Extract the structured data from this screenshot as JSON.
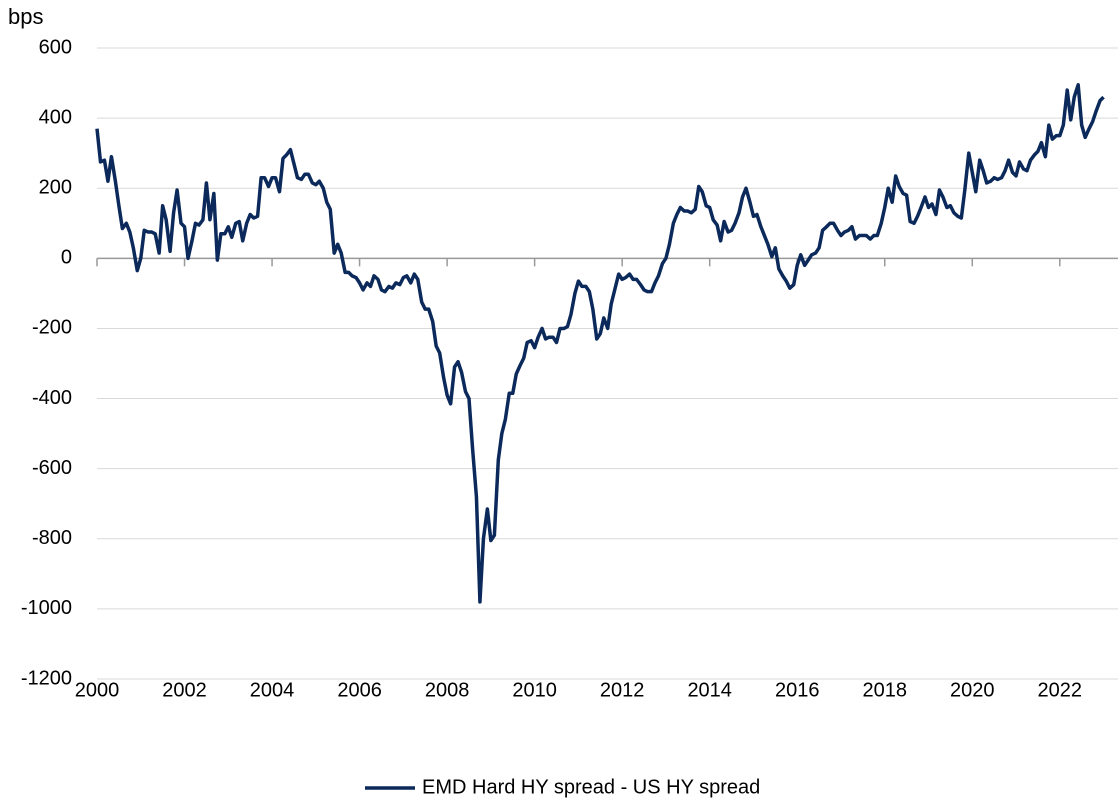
{
  "chart_data": {
    "type": "line",
    "y_label": "bps",
    "x": [
      2000,
      2000.08,
      2000.17,
      2000.25,
      2000.33,
      2000.42,
      2000.5,
      2000.58,
      2000.67,
      2000.75,
      2000.83,
      2000.92,
      2001,
      2001.08,
      2001.17,
      2001.25,
      2001.33,
      2001.42,
      2001.5,
      2001.58,
      2001.67,
      2001.75,
      2001.83,
      2001.92,
      2002,
      2002.08,
      2002.17,
      2002.25,
      2002.33,
      2002.42,
      2002.5,
      2002.58,
      2002.67,
      2002.75,
      2002.83,
      2002.92,
      2003,
      2003.08,
      2003.17,
      2003.25,
      2003.33,
      2003.42,
      2003.5,
      2003.58,
      2003.67,
      2003.75,
      2003.83,
      2003.92,
      2004,
      2004.08,
      2004.17,
      2004.25,
      2004.33,
      2004.42,
      2004.5,
      2004.58,
      2004.67,
      2004.75,
      2004.83,
      2004.92,
      2005,
      2005.08,
      2005.17,
      2005.25,
      2005.33,
      2005.42,
      2005.5,
      2005.58,
      2005.67,
      2005.75,
      2005.83,
      2005.92,
      2006,
      2006.08,
      2006.17,
      2006.25,
      2006.33,
      2006.42,
      2006.5,
      2006.58,
      2006.67,
      2006.75,
      2006.83,
      2006.92,
      2007,
      2007.08,
      2007.17,
      2007.25,
      2007.33,
      2007.42,
      2007.5,
      2007.58,
      2007.67,
      2007.75,
      2007.83,
      2007.92,
      2008,
      2008.08,
      2008.17,
      2008.25,
      2008.33,
      2008.42,
      2008.5,
      2008.58,
      2008.67,
      2008.75,
      2008.83,
      2008.92,
      2009,
      2009.08,
      2009.17,
      2009.25,
      2009.33,
      2009.42,
      2009.5,
      2009.58,
      2009.67,
      2009.75,
      2009.83,
      2009.92,
      2010,
      2010.08,
      2010.17,
      2010.25,
      2010.33,
      2010.42,
      2010.5,
      2010.58,
      2010.67,
      2010.75,
      2010.83,
      2010.92,
      2011,
      2011.08,
      2011.17,
      2011.25,
      2011.33,
      2011.42,
      2011.5,
      2011.58,
      2011.67,
      2011.75,
      2011.83,
      2011.92,
      2012,
      2012.08,
      2012.17,
      2012.25,
      2012.33,
      2012.42,
      2012.5,
      2012.58,
      2012.67,
      2012.75,
      2012.83,
      2012.92,
      2013,
      2013.08,
      2013.17,
      2013.25,
      2013.33,
      2013.42,
      2013.5,
      2013.58,
      2013.67,
      2013.75,
      2013.83,
      2013.92,
      2014,
      2014.08,
      2014.17,
      2014.25,
      2014.33,
      2014.42,
      2014.5,
      2014.58,
      2014.67,
      2014.75,
      2014.83,
      2014.92,
      2015,
      2015.08,
      2015.17,
      2015.25,
      2015.33,
      2015.42,
      2015.5,
      2015.58,
      2015.67,
      2015.75,
      2015.83,
      2015.92,
      2016,
      2016.08,
      2016.17,
      2016.25,
      2016.33,
      2016.42,
      2016.5,
      2016.58,
      2016.67,
      2016.75,
      2016.83,
      2016.92,
      2017,
      2017.08,
      2017.17,
      2017.25,
      2017.33,
      2017.42,
      2017.5,
      2017.58,
      2017.67,
      2017.75,
      2017.83,
      2017.92,
      2018,
      2018.08,
      2018.17,
      2018.25,
      2018.33,
      2018.42,
      2018.5,
      2018.58,
      2018.67,
      2018.75,
      2018.83,
      2018.92,
      2019,
      2019.08,
      2019.17,
      2019.25,
      2019.33,
      2019.42,
      2019.5,
      2019.58,
      2019.67,
      2019.75,
      2019.83,
      2019.92,
      2020,
      2020.08,
      2020.17,
      2020.25,
      2020.33,
      2020.42,
      2020.5,
      2020.58,
      2020.67,
      2020.75,
      2020.83,
      2020.92,
      2021,
      2021.08,
      2021.17,
      2021.25,
      2021.33,
      2021.42,
      2021.5,
      2021.58,
      2021.67,
      2021.75,
      2021.83,
      2021.92,
      2022,
      2022.08,
      2022.17,
      2022.25,
      2022.33,
      2022.42,
      2022.5,
      2022.58,
      2022.67,
      2022.75,
      2022.83,
      2022.92,
      2023
    ],
    "series": [
      {
        "name": "EMD Hard HY spread - US HY spread",
        "color": "#0b2a5b",
        "values": [
          370,
          275,
          280,
          220,
          290,
          220,
          150,
          85,
          100,
          75,
          30,
          -35,
          0,
          80,
          75,
          75,
          70,
          15,
          150,
          110,
          20,
          130,
          195,
          100,
          90,
          0,
          50,
          100,
          95,
          110,
          215,
          110,
          185,
          -5,
          70,
          70,
          90,
          60,
          100,
          105,
          50,
          100,
          125,
          115,
          120,
          230,
          230,
          205,
          230,
          230,
          190,
          285,
          295,
          310,
          270,
          230,
          225,
          240,
          240,
          215,
          210,
          220,
          200,
          160,
          140,
          15,
          40,
          15,
          -40,
          -40,
          -50,
          -55,
          -70,
          -90,
          -70,
          -80,
          -50,
          -60,
          -90,
          -95,
          -80,
          -85,
          -70,
          -75,
          -55,
          -50,
          -70,
          -45,
          -60,
          -125,
          -145,
          -145,
          -180,
          -250,
          -270,
          -340,
          -390,
          -415,
          -310,
          -295,
          -325,
          -380,
          -400,
          -540,
          -680,
          -980,
          -800,
          -715,
          -805,
          -790,
          -575,
          -500,
          -460,
          -385,
          -385,
          -330,
          -305,
          -285,
          -240,
          -235,
          -255,
          -225,
          -200,
          -230,
          -225,
          -225,
          -240,
          -200,
          -200,
          -195,
          -160,
          -100,
          -65,
          -80,
          -80,
          -95,
          -145,
          -230,
          -215,
          -170,
          -200,
          -130,
          -90,
          -45,
          -60,
          -55,
          -45,
          -60,
          -60,
          -75,
          -90,
          -95,
          -95,
          -70,
          -50,
          -15,
          0,
          40,
          100,
          125,
          145,
          135,
          135,
          130,
          140,
          205,
          190,
          150,
          145,
          110,
          95,
          50,
          105,
          75,
          80,
          100,
          130,
          175,
          200,
          160,
          120,
          125,
          90,
          65,
          40,
          5,
          30,
          -30,
          -50,
          -65,
          -85,
          -75,
          -20,
          10,
          -20,
          -5,
          10,
          15,
          30,
          80,
          90,
          100,
          100,
          80,
          65,
          75,
          80,
          90,
          55,
          65,
          65,
          65,
          55,
          65,
          65,
          100,
          145,
          200,
          160,
          235,
          205,
          185,
          180,
          105,
          100,
          120,
          145,
          175,
          145,
          155,
          125,
          195,
          175,
          145,
          150,
          130,
          120,
          115,
          195,
          300,
          245,
          190,
          280,
          250,
          215,
          220,
          230,
          225,
          230,
          250,
          280,
          245,
          235,
          275,
          255,
          250,
          280,
          295,
          305,
          330,
          290,
          380,
          340,
          350,
          350,
          380,
          480,
          395,
          460,
          495,
          380,
          345,
          370,
          390,
          420,
          450,
          460
        ]
      }
    ],
    "xlim": [
      2000,
      2023.33
    ],
    "xticks": [
      2000,
      2002,
      2004,
      2006,
      2008,
      2010,
      2012,
      2014,
      2016,
      2018,
      2020,
      2022
    ],
    "ylim": [
      -1200,
      600
    ],
    "yticks": [
      -1200,
      -1000,
      -800,
      -600,
      -400,
      -200,
      0,
      200,
      400,
      600
    ],
    "grid": true,
    "legend": "bottom"
  }
}
